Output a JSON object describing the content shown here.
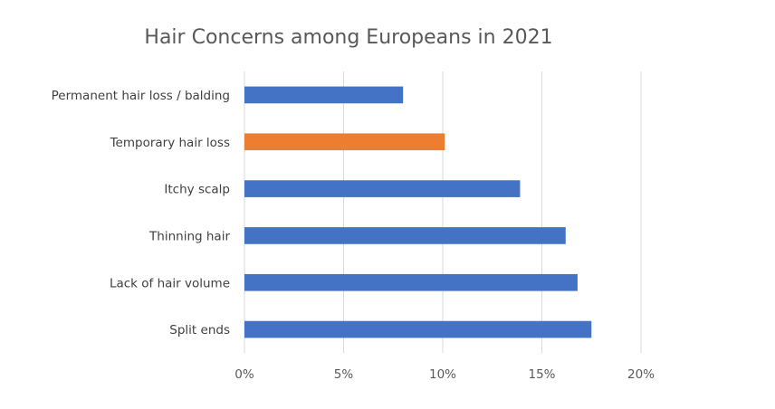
{
  "chart_data": {
    "type": "bar",
    "orientation": "horizontal",
    "title": "Hair Concerns among Europeans in 2021",
    "xlabel": "",
    "ylabel": "",
    "categories": [
      "Permanent hair loss / balding",
      "Temporary hair loss",
      "Itchy scalp",
      "Thinning hair",
      "Lack of hair volume",
      "Split ends"
    ],
    "values": [
      8.0,
      10.1,
      13.9,
      16.2,
      16.8,
      17.5
    ],
    "bar_colors": [
      "#4472c4",
      "#ed7d31",
      "#4472c4",
      "#4472c4",
      "#4472c4",
      "#4472c4"
    ],
    "xlim": [
      0,
      20
    ],
    "ticks": [
      0,
      5,
      10,
      15,
      20
    ],
    "tick_labels": [
      "0%",
      "5%",
      "10%",
      "15%",
      "20%"
    ],
    "grid": true,
    "legend": "none"
  }
}
